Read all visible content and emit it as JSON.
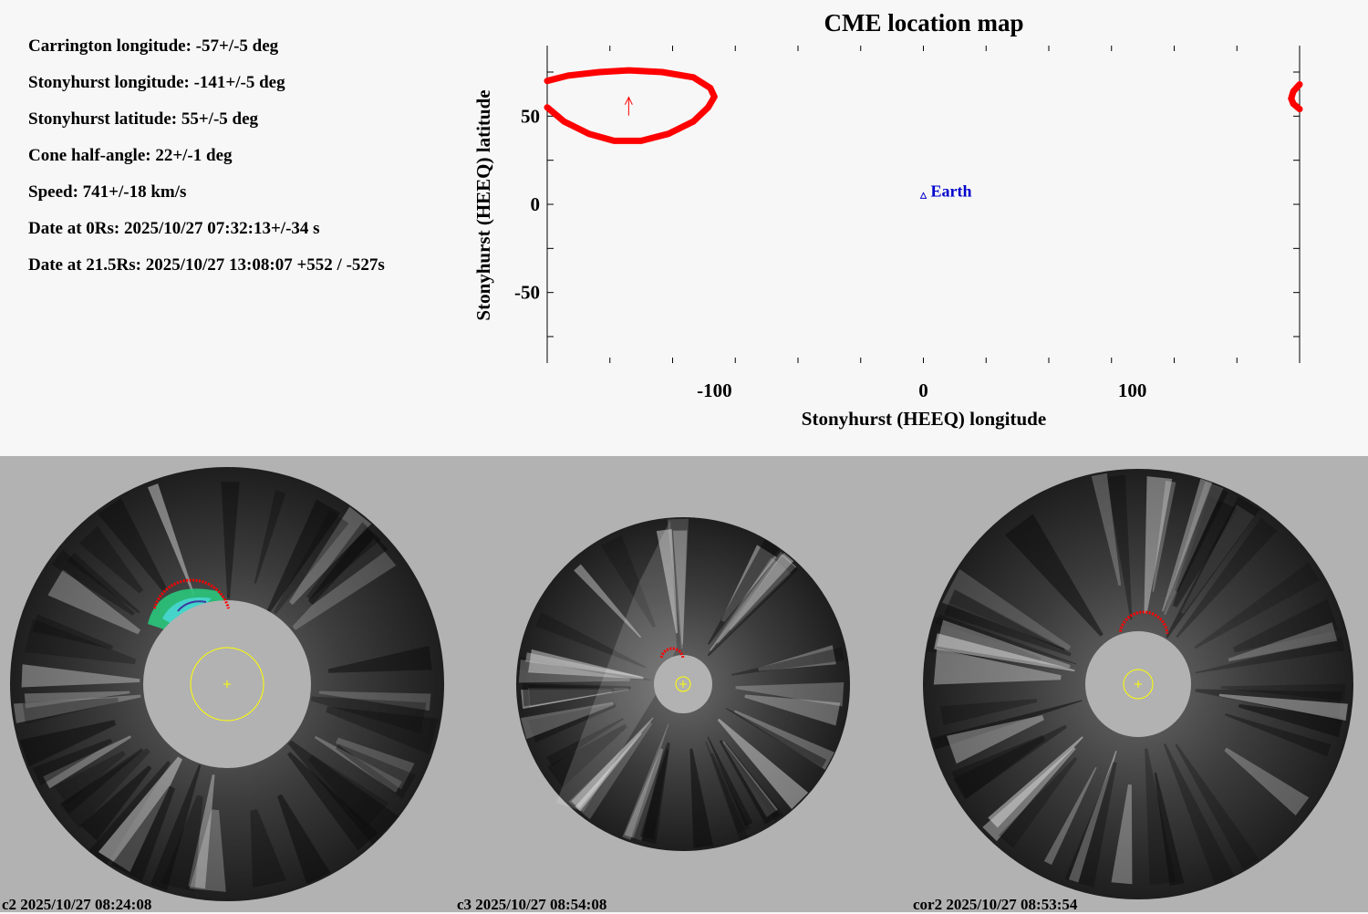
{
  "parameters": [
    {
      "text": "Carrington longitude: -57+/-5 deg"
    },
    {
      "text": "Stonyhurst longitude: -141+/-5 deg"
    },
    {
      "text": "Stonyhurst latitude: 55+/-5 deg"
    },
    {
      "text": "Cone half-angle: 22+/-1 deg"
    },
    {
      "text": "Speed: 741+/-18 km/s"
    },
    {
      "text": "Date at 0Rs: 2025/10/27 07:32:13+/-34 s"
    },
    {
      "text": "Date at 21.5Rs: 2025/10/27 13:08:07 +552 / -527s"
    }
  ],
  "chart_data": {
    "type": "scatter",
    "title": "CME location map",
    "xlabel": "Stonyhurst (HEEQ) longitude",
    "ylabel": "Stonyhurst (HEEQ) latitude",
    "xlim": [
      -180,
      180
    ],
    "ylim": [
      -90,
      90
    ],
    "xticks": [
      -100,
      0,
      100
    ],
    "yticks": [
      50,
      0,
      -50
    ],
    "xtick_labels": [
      "-100",
      "0",
      "100"
    ],
    "ytick_labels": [
      "50",
      "0",
      "-50"
    ],
    "grid": false,
    "cme_center": {
      "lon": -141,
      "lat": 55
    },
    "cme_outline": [
      [
        -180,
        70
      ],
      [
        -170,
        73
      ],
      [
        -155,
        75
      ],
      [
        -141,
        76
      ],
      [
        -125,
        75
      ],
      [
        -110,
        72
      ],
      [
        -102,
        66
      ],
      [
        -100,
        61
      ],
      [
        -103,
        55
      ],
      [
        -110,
        47
      ],
      [
        -122,
        40
      ],
      [
        -135,
        36
      ],
      [
        -148,
        36
      ],
      [
        -160,
        40
      ],
      [
        -172,
        47
      ],
      [
        -180,
        55
      ]
    ],
    "cme_outline_wrap": [
      [
        180,
        68
      ],
      [
        177,
        64
      ],
      [
        176,
        60
      ],
      [
        177,
        57
      ],
      [
        180,
        54
      ]
    ],
    "earth": {
      "lon": 0,
      "lat": 5,
      "label": "Earth"
    },
    "colors": {
      "cme": "#ff0000",
      "earth": "#0000cc"
    }
  },
  "coronagraphs": [
    {
      "label": "c2 2025/10/27 08:24:08"
    },
    {
      "label": "c3 2025/10/27 08:54:08"
    },
    {
      "label": "cor2 2025/10/27 08:53:54"
    }
  ]
}
